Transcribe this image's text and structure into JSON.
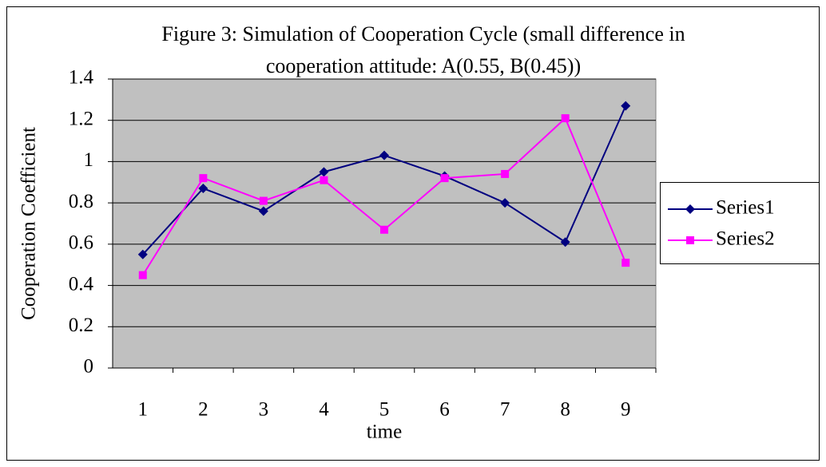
{
  "chart_data": {
    "type": "line",
    "title": [
      "Figure 3: Simulation of Cooperation Cycle (small difference in",
      "cooperation attitude: A(0.55, B(0.45))"
    ],
    "x_label": "time",
    "y_label": "Cooperation Coefficient",
    "categories": [
      "1",
      "2",
      "3",
      "4",
      "5",
      "6",
      "7",
      "8",
      "9"
    ],
    "series": [
      {
        "name": "Series1",
        "color": "#000080",
        "marker": "diamond",
        "values": [
          0.55,
          0.87,
          0.76,
          0.95,
          1.03,
          0.93,
          0.8,
          0.61,
          1.27
        ]
      },
      {
        "name": "Series2",
        "color": "#ff00ff",
        "marker": "square",
        "values": [
          0.45,
          0.92,
          0.81,
          0.91,
          0.67,
          0.92,
          0.94,
          1.21,
          0.51
        ]
      }
    ],
    "ylim": [
      0,
      1.4
    ],
    "yticks": [
      0,
      {
        "value": 0.2,
        "label": "0.2"
      },
      {
        "value": 0.4,
        "label": "0.4"
      },
      {
        "value": 0.6,
        "label": "0.6"
      },
      {
        "value": 0.8,
        "label": "0.8"
      },
      1,
      {
        "value": 1.2,
        "label": "1.2"
      },
      {
        "value": 1.4,
        "label": "1.4"
      }
    ],
    "grid": true,
    "legend": "right"
  }
}
